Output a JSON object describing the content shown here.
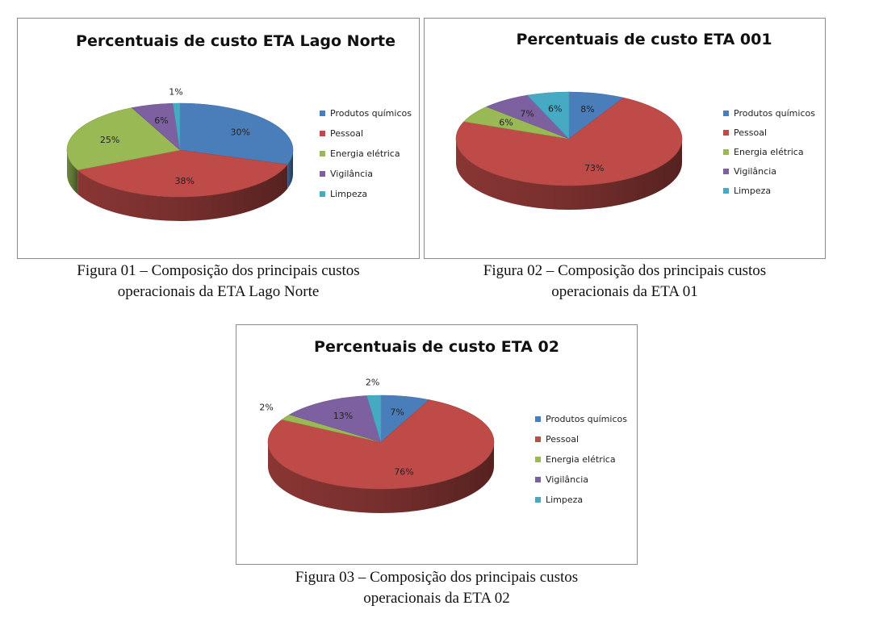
{
  "legend_labels": [
    "Produtos químicos",
    "Pessoal",
    "Energia elétrica",
    "Vigilância",
    "Limpeza"
  ],
  "colors": {
    "Produtos químicos": "#4a7ebb",
    "Pessoal": "#be4b48",
    "Energia elétrica": "#98b954",
    "Vigilância": "#7d60a0",
    "Limpeza": "#46aac5"
  },
  "captions": [
    {
      "line1": "Figura 01 – Composição dos principais custos",
      "line2": "operacionais da ETA Lago Norte"
    },
    {
      "line1": "Figura 02 – Composição dos principais custos",
      "line2": "operacionais da ETA 01"
    },
    {
      "line1": "Figura 03 – Composição dos principais custos",
      "line2": "operacionais da ETA 02"
    }
  ],
  "chart_data": [
    {
      "type": "pie",
      "title": "Percentuais de custo ETA Lago Norte",
      "categories": [
        "Produtos químicos",
        "Pessoal",
        "Energia elétrica",
        "Vigilância",
        "Limpeza"
      ],
      "values": [
        30,
        38,
        25,
        6,
        1
      ],
      "data_labels": [
        "30%",
        "38%",
        "25%",
        "6%",
        "1%"
      ],
      "legend_position": "right",
      "style": "3d"
    },
    {
      "type": "pie",
      "title": "Percentuais de custo ETA 001",
      "categories": [
        "Produtos químicos",
        "Pessoal",
        "Energia elétrica",
        "Vigilância",
        "Limpeza"
      ],
      "values": [
        8,
        73,
        6,
        7,
        6
      ],
      "data_labels": [
        "8%",
        "73%",
        "6%",
        "7%",
        "6%"
      ],
      "legend_position": "right",
      "style": "3d"
    },
    {
      "type": "pie",
      "title": "Percentuais de custo ETA 02",
      "categories": [
        "Produtos químicos",
        "Pessoal",
        "Energia elétrica",
        "Vigilância",
        "Limpeza"
      ],
      "values": [
        7,
        76,
        2,
        13,
        2
      ],
      "data_labels": [
        "7%",
        "76%",
        "2%",
        "13%",
        "2%"
      ],
      "legend_position": "right",
      "style": "3d"
    }
  ]
}
